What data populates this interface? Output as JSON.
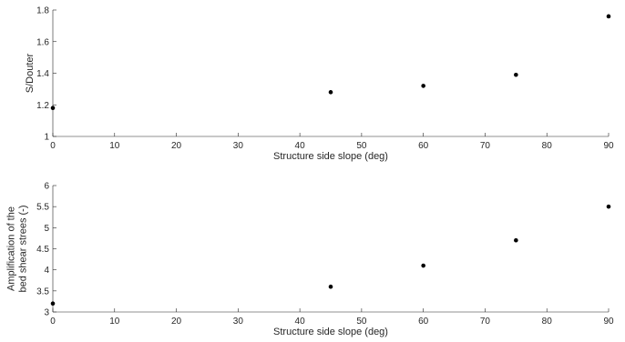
{
  "chart_data": [
    {
      "type": "scatter",
      "title": "",
      "xlabel": "Structure side slope (deg)",
      "ylabel": [
        "S/Douter"
      ],
      "xlim": [
        0,
        90
      ],
      "ylim": [
        1,
        1.8
      ],
      "x_ticks": [
        0,
        10,
        20,
        30,
        40,
        50,
        60,
        70,
        80,
        90
      ],
      "x_tick_labels": [
        "0",
        "10",
        "20",
        "30",
        "40",
        "50",
        "60",
        "70",
        "80",
        "90"
      ],
      "y_ticks": [
        1,
        1.2,
        1.4,
        1.6,
        1.8
      ],
      "y_tick_labels": [
        "1",
        "1.2",
        "1.4",
        "1.6",
        "1.8"
      ],
      "grid": false,
      "series": [
        {
          "x": [
            0,
            45,
            60,
            75,
            90
          ],
          "y": [
            1.18,
            1.28,
            1.32,
            1.39,
            1.76
          ],
          "color": "#000000"
        }
      ]
    },
    {
      "type": "scatter",
      "title": "",
      "xlabel": "Structure side slope (deg)",
      "ylabel": [
        "Amplification of the",
        "bed shear strees (-)"
      ],
      "xlim": [
        0,
        90
      ],
      "ylim": [
        3,
        6
      ],
      "x_ticks": [
        0,
        10,
        20,
        30,
        40,
        50,
        60,
        70,
        80,
        90
      ],
      "x_tick_labels": [
        "0",
        "10",
        "20",
        "30",
        "40",
        "50",
        "60",
        "70",
        "80",
        "90"
      ],
      "y_ticks": [
        3,
        3.5,
        4,
        4.5,
        5,
        5.5,
        6
      ],
      "y_tick_labels": [
        "3",
        "3.5",
        "4",
        "4.5",
        "5",
        "5.5",
        "6"
      ],
      "grid": false,
      "series": [
        {
          "x": [
            0,
            45,
            60,
            75,
            90
          ],
          "y": [
            3.2,
            3.6,
            4.1,
            4.7,
            5.5
          ],
          "color": "#000000"
        }
      ]
    }
  ]
}
